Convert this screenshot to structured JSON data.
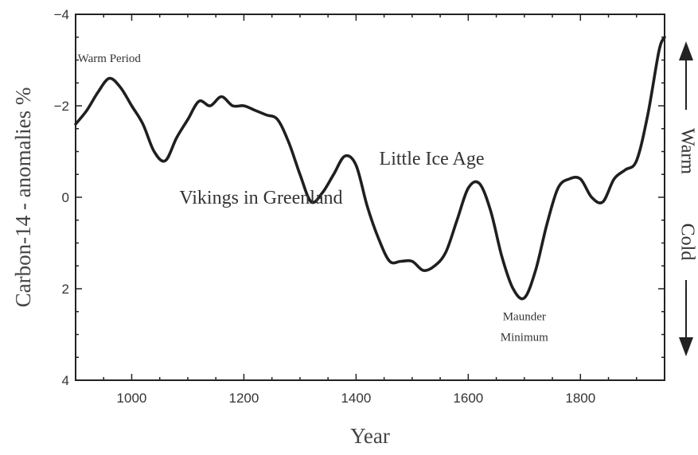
{
  "chart_data": {
    "type": "line",
    "title": "",
    "xlabel": "Year",
    "ylabel": "Carbon-14 - anomalies %",
    "xlim": [
      900,
      1950
    ],
    "ylim": [
      -4,
      4
    ],
    "y_inverted": true,
    "grid": false,
    "x_ticks": [
      {
        "value": 1000,
        "label": "1000"
      },
      {
        "value": 1200,
        "label": "1200"
      },
      {
        "value": 1400,
        "label": "1400"
      },
      {
        "value": 1600,
        "label": "1600"
      },
      {
        "value": 1800,
        "label": "1800"
      }
    ],
    "y_ticks": [
      {
        "value": -4,
        "label": "−4"
      },
      {
        "value": -2,
        "label": "−2"
      },
      {
        "value": 0,
        "label": "0"
      },
      {
        "value": 2,
        "label": "2"
      },
      {
        "value": 4,
        "label": "4"
      }
    ],
    "series": [
      {
        "x": [
          900,
          920,
          940,
          960,
          980,
          1000,
          1020,
          1040,
          1060,
          1080,
          1100,
          1120,
          1140,
          1160,
          1180,
          1200,
          1220,
          1240,
          1260,
          1280,
          1300,
          1320,
          1340,
          1360,
          1380,
          1400,
          1420,
          1440,
          1460,
          1480,
          1500,
          1520,
          1540,
          1560,
          1580,
          1600,
          1620,
          1640,
          1660,
          1680,
          1700,
          1720,
          1740,
          1760,
          1780,
          1800,
          1820,
          1840,
          1860,
          1880,
          1900,
          1920,
          1940,
          1950
        ],
        "y": [
          -1.6,
          -1.9,
          -2.3,
          -2.6,
          -2.4,
          -2.0,
          -1.6,
          -1.0,
          -0.8,
          -1.3,
          -1.7,
          -2.1,
          -2.0,
          -2.2,
          -2.0,
          -2.0,
          -1.9,
          -1.8,
          -1.7,
          -1.2,
          -0.5,
          0.1,
          -0.1,
          -0.5,
          -0.9,
          -0.7,
          0.2,
          0.9,
          1.4,
          1.4,
          1.4,
          1.6,
          1.5,
          1.2,
          0.5,
          -0.2,
          -0.3,
          0.3,
          1.3,
          2.0,
          2.2,
          1.6,
          0.6,
          -0.2,
          -0.4,
          -0.4,
          0.0,
          0.1,
          -0.4,
          -0.6,
          -0.8,
          -1.8,
          -3.2,
          -3.5
        ]
      }
    ],
    "annotations": [
      {
        "text": "Warm Period",
        "x": 960,
        "y": -3.1
      },
      {
        "text": "Vikings in Greenland",
        "x": 1085,
        "y": 0.0
      },
      {
        "text": "Little Ice Age",
        "x": 1535,
        "y": -0.85
      },
      {
        "text": "Maunder",
        "x": 1700,
        "y": 2.55
      },
      {
        "text": "Minimum",
        "x": 1700,
        "y": 3.0
      }
    ],
    "side_labels": {
      "top": "Warm",
      "bottom": "Cold"
    },
    "colors": {
      "line": "#1f1f1f",
      "axis": "#222222",
      "text": "#333333"
    }
  }
}
